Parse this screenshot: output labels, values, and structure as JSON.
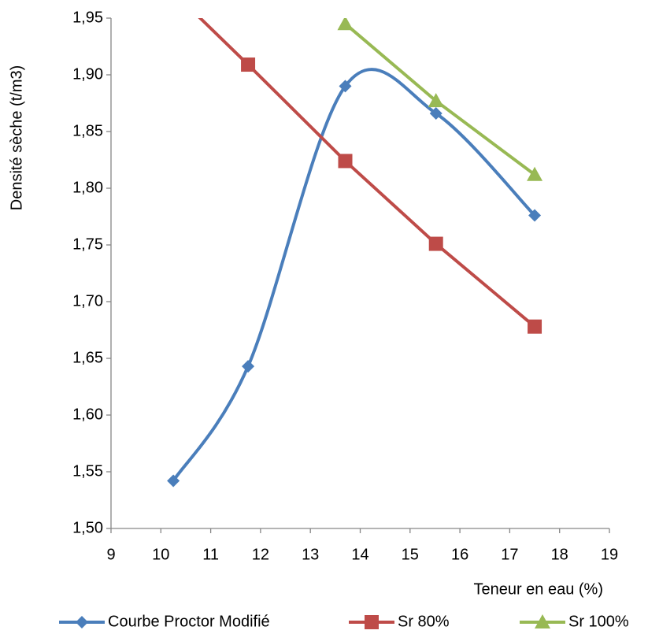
{
  "chart_data": {
    "type": "line",
    "y_axis_label": "Densité sèche (t/m3)",
    "x_axis_label": "Teneur en eau (%)",
    "xlim": [
      9,
      19
    ],
    "xticks": [
      9,
      10,
      11,
      12,
      13,
      14,
      15,
      16,
      17,
      18,
      19
    ],
    "ylim": [
      1.5,
      1.95
    ],
    "yticks": [
      {
        "value": 1.5,
        "label": "1,50"
      },
      {
        "value": 1.55,
        "label": "1,55"
      },
      {
        "value": 1.6,
        "label": "1,60"
      },
      {
        "value": 1.65,
        "label": "1,65"
      },
      {
        "value": 1.7,
        "label": "1,70"
      },
      {
        "value": 1.75,
        "label": "1,75"
      },
      {
        "value": 1.8,
        "label": "1,80"
      },
      {
        "value": 1.85,
        "label": "1,85"
      },
      {
        "value": 1.9,
        "label": "1,90"
      },
      {
        "value": 1.95,
        "label": "1,95"
      }
    ],
    "grid": false,
    "legend": "bottom",
    "series": [
      {
        "name": "Courbe Proctor Modifié",
        "color": "#4a7ebb",
        "marker": "diamond",
        "smooth": true,
        "x": [
          10.25,
          11.75,
          13.7,
          15.52,
          17.5
        ],
        "values": [
          1.542,
          1.643,
          1.89,
          1.866,
          1.776
        ]
      },
      {
        "name": "Sr 80%",
        "color": "#be4b48",
        "marker": "square",
        "smooth": false,
        "x": [
          10.25,
          11.75,
          13.7,
          15.52,
          17.5
        ],
        "values": [
          1.973,
          1.909,
          1.824,
          1.751,
          1.678
        ]
      },
      {
        "name": "Sr 100%",
        "color": "#98b954",
        "marker": "triangle",
        "smooth": false,
        "x": [
          13.7,
          15.52,
          17.5
        ],
        "values": [
          1.945,
          1.877,
          1.812
        ]
      }
    ]
  }
}
